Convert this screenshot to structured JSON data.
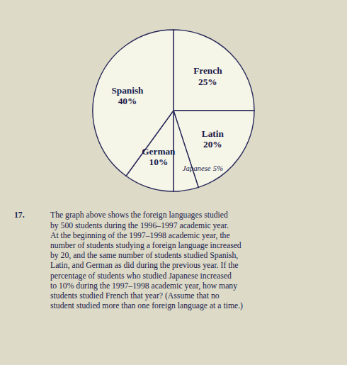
{
  "chart_data": {
    "type": "pie",
    "categories": [
      "French",
      "Latin",
      "Japanese",
      "German",
      "Spanish"
    ],
    "values": [
      25,
      20,
      5,
      10,
      40
    ],
    "value_labels": [
      "25%",
      "20%",
      "5%",
      "10%",
      "40%"
    ],
    "colors": [
      "#f5f5e8",
      "#f5f5e8",
      "#f5f5e8",
      "#f5f5e8",
      "#f5f5e8"
    ],
    "data_labels": true,
    "annotations": [
      "17.",
      "The graph above shows the foreign languages studied\nby 500 students during the 1996–1997 academic year.\nAt the beginning of the 1997–1998 academic year, the\nnumber of students studying a foreign language increased\nby 20, and the same number of students studied Spanish,\nLatin, and German as did during the previous year. If the\npercentage of students who studied Japanese increased\nto 10% during the 1997–1998 academic year, how many\nstudents studied French that year? (Assume that no\nstudent studied more than one foreign language at a time.)"
    ]
  }
}
